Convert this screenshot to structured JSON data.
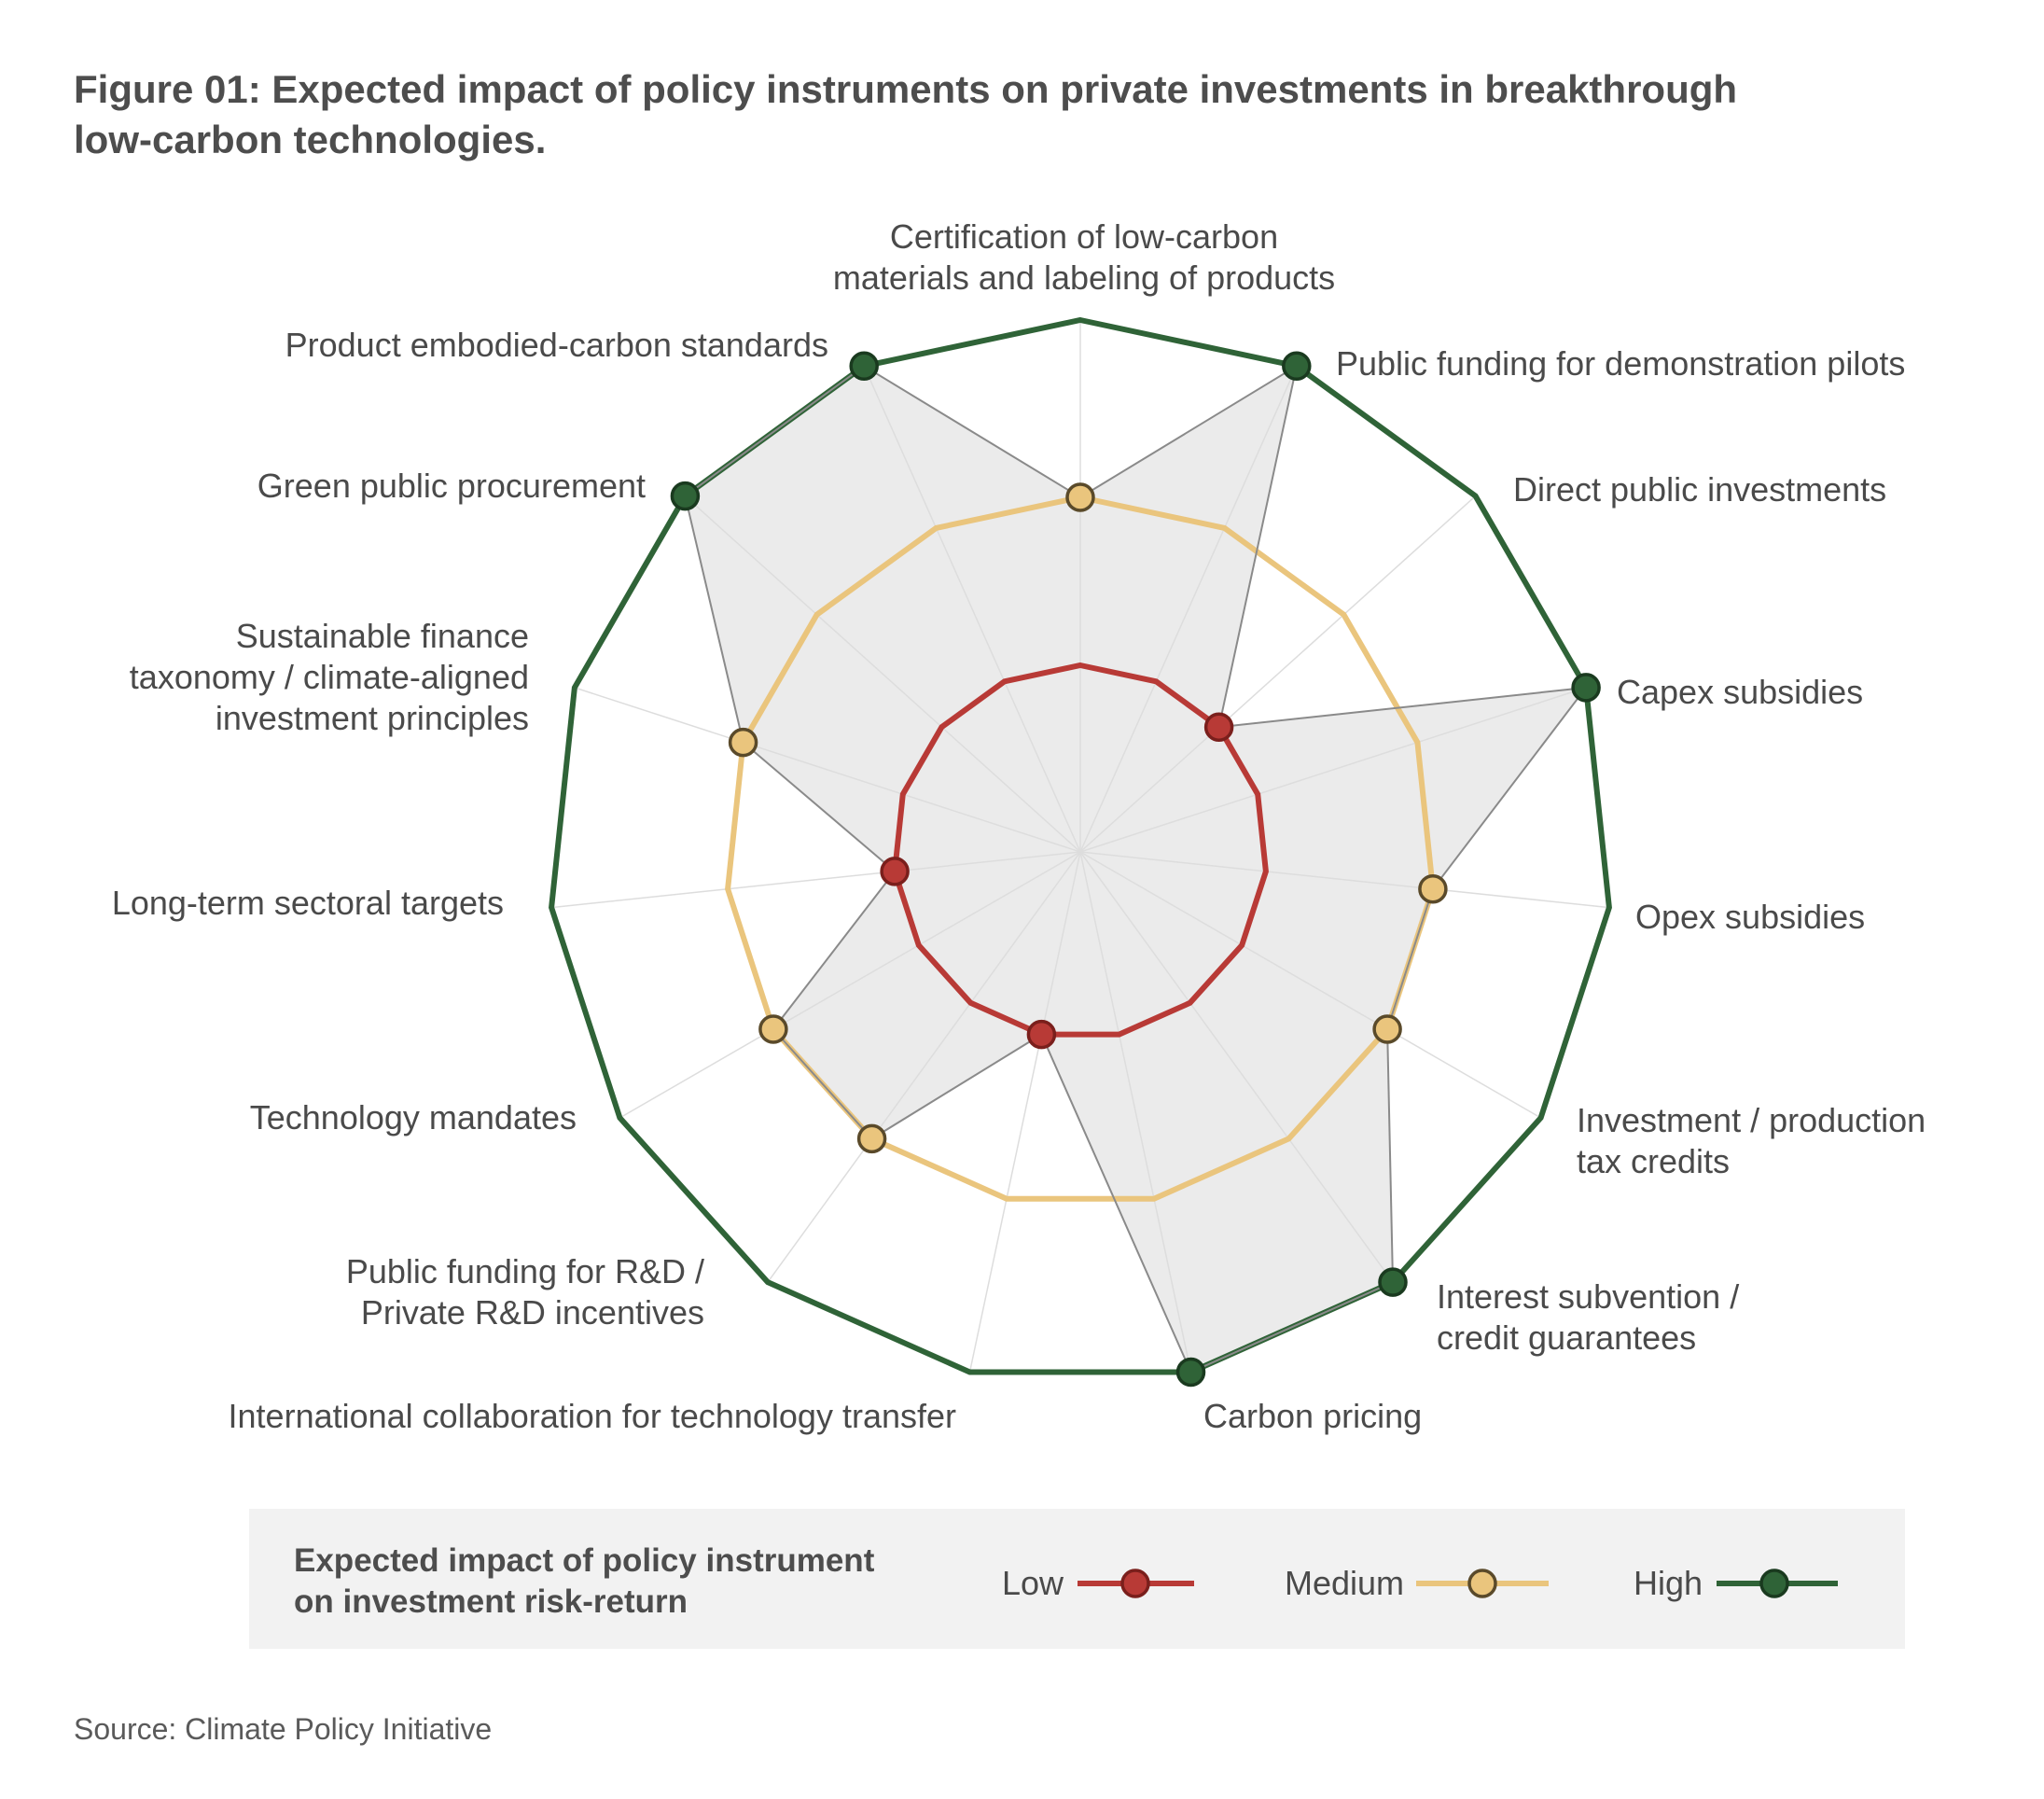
{
  "title": {
    "line1": "Figure 01: Expected impact of policy instruments on private investments in breakthrough",
    "line2": "low-carbon technologies."
  },
  "chart_data": {
    "type": "radar",
    "levels": [
      "Low",
      "Medium",
      "High"
    ],
    "axes": [
      {
        "label": [
          "Certification of low-carbon",
          "materials and labeling of products"
        ],
        "level": "Medium"
      },
      {
        "label": [
          "Public funding for demonstration pilots"
        ],
        "level": "High"
      },
      {
        "label": [
          "Direct public investments"
        ],
        "level": "Low"
      },
      {
        "label": [
          "Capex subsidies"
        ],
        "level": "High"
      },
      {
        "label": [
          "Opex subsidies"
        ],
        "level": "Medium"
      },
      {
        "label": [
          "Investment / production",
          "tax credits"
        ],
        "level": "Medium"
      },
      {
        "label": [
          "Interest subvention /",
          "credit guarantees"
        ],
        "level": "High"
      },
      {
        "label": [
          "Carbon pricing"
        ],
        "level": "High"
      },
      {
        "label": [
          "International collaboration for technology transfer"
        ],
        "level": "Low"
      },
      {
        "label": [
          "Public funding for R&D /",
          "Private R&D incentives"
        ],
        "level": "Medium"
      },
      {
        "label": [
          "Technology mandates"
        ],
        "level": "Medium"
      },
      {
        "label": [
          "Long-term sectoral targets"
        ],
        "level": "Low"
      },
      {
        "label": [
          "Sustainable finance",
          "taxonomy / climate-aligned",
          "investment principles"
        ],
        "level": "Medium"
      },
      {
        "label": [
          "Green public procurement"
        ],
        "level": "High"
      },
      {
        "label": [
          "Product embodied-carbon standards"
        ],
        "level": "High"
      }
    ],
    "legend": {
      "title": [
        "Expected impact of policy instrument",
        "on investment risk-return"
      ],
      "items": [
        {
          "name": "Low",
          "color": "#b83a36"
        },
        {
          "name": "Medium",
          "color": "#eac57d"
        },
        {
          "name": "High",
          "color": "#2f6337"
        }
      ],
      "placement": "bottom"
    },
    "colors": {
      "low": "#b83a36",
      "low_dark": "#7a1f1c",
      "medium": "#eac57d",
      "medium_dark": "#5a4a2a",
      "high": "#2f6337",
      "high_dark": "#1a3a1f",
      "profile_fill": "#ebebeb",
      "profile_line": "#8a8a8a",
      "spoke": "#dddddd",
      "legend_bg": "#f2f2f2"
    }
  },
  "source": "Source: Climate Policy Initiative"
}
